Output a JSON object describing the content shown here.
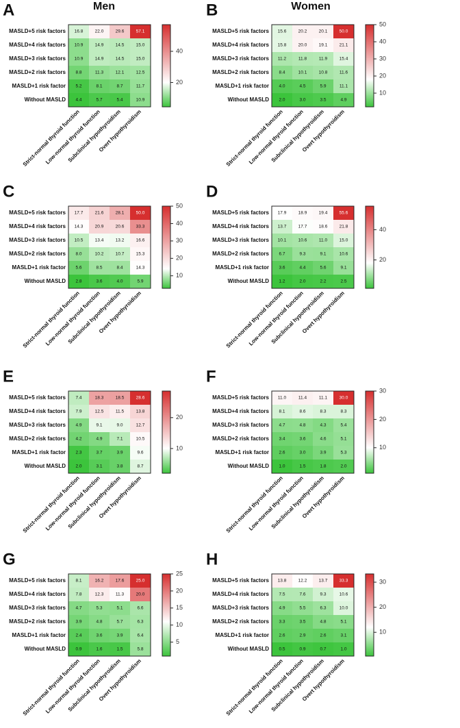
{
  "column_titles": [
    "Men",
    "Women"
  ],
  "chart_data": [
    {
      "type": "heatmap",
      "panel": "A",
      "rows": [
        "MASLD+5 risk factors",
        "MASLD+4 risk factors",
        "MASLD+3 risk factors",
        "MASLD+2 risk factors",
        "MASLD+1 risk factor",
        "Without MASLD"
      ],
      "columns": [
        "Strict-normal thyroid function",
        "Low-normal thyroid function",
        "Subclinical hypothyroidism",
        "Overt hypothyroidism"
      ],
      "values": [
        [
          16.8,
          22.0,
          29.6,
          57.1
        ],
        [
          10.9,
          14.9,
          14.5,
          15.0
        ],
        [
          10.9,
          14.9,
          14.5,
          15.0
        ],
        [
          8.8,
          11.3,
          12.1,
          12.5
        ],
        [
          5.2,
          8.1,
          8.7,
          11.7
        ],
        [
          4.4,
          5.7,
          5.4,
          10.9
        ]
      ],
      "value_labels": [
        [
          "16.8",
          "22.0",
          "29.6",
          "57.1"
        ],
        [
          "10.9",
          "14.9",
          "14.5",
          "15.0"
        ],
        [
          "10.9",
          "14.9",
          "14.5",
          "15.0"
        ],
        [
          "8.8",
          "11.3",
          "12.1",
          "12.5"
        ],
        [
          "5.2",
          "8.1",
          "8.7",
          "11.7"
        ],
        [
          "4.4",
          "5.7",
          "5.4",
          "10.9"
        ]
      ],
      "zlim": [
        4.4,
        57.1
      ],
      "zticks": [
        20,
        40
      ],
      "zcenter": 20,
      "colors": {
        "low": "#3cc43c",
        "mid": "#ffffff",
        "high": "#d62f2f"
      }
    },
    {
      "type": "heatmap",
      "panel": "B",
      "rows": [
        "MASLD+5 risk factors",
        "MASLD+4 risk factors",
        "MASLD+3 risk factors",
        "MASLD+2 risk factors",
        "MASLD+1 risk factor",
        "Without MASLD"
      ],
      "columns": [
        "Strict-normal thyroid function",
        "Low-normal thyroid function",
        "Subclinical hypothyroidism",
        "Overt hypothyroidism"
      ],
      "values": [
        [
          15.6,
          20.2,
          20.1,
          50.0
        ],
        [
          15.8,
          20.0,
          19.1,
          21.1
        ],
        [
          11.2,
          11.8,
          11.9,
          15.4
        ],
        [
          8.4,
          10.1,
          10.8,
          11.6
        ],
        [
          4.0,
          4.5,
          5.9,
          11.1
        ],
        [
          2.0,
          3.0,
          3.5,
          4.9
        ]
      ],
      "value_labels": [
        [
          "15.6",
          "20.2",
          "20.1",
          "50.0"
        ],
        [
          "15.8",
          "20.0",
          "19.1",
          "21.1"
        ],
        [
          "11.2",
          "11.8",
          "11.9",
          "15.4"
        ],
        [
          "8.4",
          "10.1",
          "10.8",
          "11.6"
        ],
        [
          "4.0",
          "4.5",
          "5.9",
          "11.1"
        ],
        [
          "2.0",
          "3.0",
          "3.5",
          "4.9"
        ]
      ],
      "zlim": [
        2.0,
        50.0
      ],
      "zticks": [
        10,
        20,
        30,
        40,
        50
      ],
      "zcenter": 18,
      "colors": {
        "low": "#3cc43c",
        "mid": "#ffffff",
        "high": "#d62f2f"
      }
    },
    {
      "type": "heatmap",
      "panel": "C",
      "rows": [
        "MASLD+5 risk factors",
        "MASLD+4 risk factors",
        "MASLD+3 risk factors",
        "MASLD+2 risk factors",
        "MASLD+1 risk factor",
        "Without MASLD"
      ],
      "columns": [
        "Strict-normal thyroid function",
        "Low-normal thyroid function",
        "Subclinical hypothyroidism",
        "Overt hypothyroidism"
      ],
      "values": [
        [
          17.7,
          21.6,
          28.1,
          50.0
        ],
        [
          14.3,
          20.9,
          20.6,
          33.3
        ],
        [
          10.5,
          13.4,
          13.2,
          16.6
        ],
        [
          8.0,
          10.2,
          10.7,
          15.3
        ],
        [
          5.6,
          8.5,
          8.4,
          14.3
        ],
        [
          2.8,
          3.6,
          4.0,
          5.9
        ]
      ],
      "value_labels": [
        [
          "17.7",
          "21.6",
          "28.1",
          "50.0"
        ],
        [
          "14.3",
          "20.9",
          "20.6",
          "33.3"
        ],
        [
          "10.5",
          "13.4",
          "13.2",
          "16.6"
        ],
        [
          "8.0",
          "10.2",
          "10.7",
          "15.3"
        ],
        [
          "5.6",
          "8.5",
          "8.4",
          "14.3"
        ],
        [
          "2.8",
          "3.6",
          "4.0",
          "5.9"
        ]
      ],
      "zlim": [
        2.8,
        50.0
      ],
      "zticks": [
        10,
        20,
        30,
        40,
        50
      ],
      "zcenter": 14,
      "colors": {
        "low": "#3cc43c",
        "mid": "#ffffff",
        "high": "#d62f2f"
      }
    },
    {
      "type": "heatmap",
      "panel": "D",
      "rows": [
        "MASLD+5 risk factors",
        "MASLD+4 risk factors",
        "MASLD+3 risk factors",
        "MASLD+2 risk factors",
        "MASLD+1 risk factor",
        "Without MASLD"
      ],
      "columns": [
        "Strict-normal thyroid function",
        "Low-normal thyroid function",
        "Subclinical hypothyroidism",
        "Overt hypothyroidism"
      ],
      "values": [
        [
          17.9,
          18.9,
          19.4,
          55.6
        ],
        [
          13.7,
          17.7,
          18.6,
          21.8
        ],
        [
          10.1,
          10.6,
          11.0,
          15.0
        ],
        [
          6.7,
          9.3,
          9.1,
          10.6
        ],
        [
          3.6,
          4.4,
          5.6,
          9.1
        ],
        [
          1.2,
          2.0,
          2.2,
          2.5
        ]
      ],
      "value_labels": [
        [
          "17.9",
          "18.9",
          "19.4",
          "55.6"
        ],
        [
          "13.7",
          "17.7",
          "18.6",
          "21.8"
        ],
        [
          "10.1",
          "10.6",
          "11.0",
          "15.0"
        ],
        [
          "6.7",
          "9.3",
          "9.1",
          "10.6"
        ],
        [
          "3.6",
          "4.4",
          "5.6",
          "9.1"
        ],
        [
          "1.2",
          "2.0",
          "2.2",
          "2.5"
        ]
      ],
      "zlim": [
        1.2,
        55.6
      ],
      "zticks": [
        20,
        40
      ],
      "zcenter": 18,
      "colors": {
        "low": "#3cc43c",
        "mid": "#ffffff",
        "high": "#d62f2f"
      }
    },
    {
      "type": "heatmap",
      "panel": "E",
      "rows": [
        "MASLD+5 risk factors",
        "MASLD+4 risk factors",
        "MASLD+3 risk factors",
        "MASLD+2 risk factors",
        "MASLD+1 risk factor",
        "Without MASLD"
      ],
      "columns": [
        "Strict-normal thyroid function",
        "Low-normal thyroid function",
        "Subclinical hypothyroidism",
        "Overt hypothyroidism"
      ],
      "values": [
        [
          7.4,
          18.3,
          18.5,
          28.6
        ],
        [
          7.9,
          12.5,
          11.5,
          13.8
        ],
        [
          4.9,
          9.1,
          9.0,
          12.7
        ],
        [
          4.2,
          4.9,
          7.1,
          10.5
        ],
        [
          2.3,
          3.7,
          3.9,
          9.6
        ],
        [
          2.0,
          3.1,
          3.8,
          8.7
        ]
      ],
      "value_labels": [
        [
          "7.4",
          "18.3",
          "18.5",
          "28.6"
        ],
        [
          "7.9",
          "12.5",
          "11.5",
          "13.8"
        ],
        [
          "4.9",
          "9.1",
          "9.0",
          "12.7"
        ],
        [
          "4.2",
          "4.9",
          "7.1",
          "10.5"
        ],
        [
          "2.3",
          "3.7",
          "3.9",
          "9.6"
        ],
        [
          "2.0",
          "3.1",
          "3.8",
          "8.7"
        ]
      ],
      "zlim": [
        2.0,
        28.6
      ],
      "zticks": [
        10,
        20
      ],
      "zcenter": 10,
      "colors": {
        "low": "#3cc43c",
        "mid": "#ffffff",
        "high": "#d62f2f"
      }
    },
    {
      "type": "heatmap",
      "panel": "F",
      "rows": [
        "MASLD+5 risk factors",
        "MASLD+4 risk factors",
        "MASLD+3 risk factors",
        "MASLD+2 risk factors",
        "MASLD+1 risk factor",
        "Without MASLD"
      ],
      "columns": [
        "Strict-normal thyroid function",
        "Low-normal thyroid function",
        "Subclinical hypothyroidism",
        "Overt hypothyroidism"
      ],
      "values": [
        [
          11.0,
          11.4,
          11.1,
          30.0
        ],
        [
          8.1,
          8.6,
          8.3,
          8.3
        ],
        [
          4.7,
          4.8,
          4.3,
          5.4
        ],
        [
          3.4,
          3.6,
          4.6,
          5.1
        ],
        [
          2.6,
          3.0,
          3.9,
          5.3
        ],
        [
          1.0,
          1.5,
          1.8,
          2.0
        ]
      ],
      "value_labels": [
        [
          "11.0",
          "11.4",
          "11.1",
          "30.0"
        ],
        [
          "8.1",
          "8.6",
          "8.3",
          "8.3"
        ],
        [
          "4.7",
          "4.8",
          "4.3",
          "5.4"
        ],
        [
          "3.4",
          "3.6",
          "4.6",
          "5.1"
        ],
        [
          "2.6",
          "3.0",
          "3.9",
          "5.3"
        ],
        [
          "1.0",
          "1.5",
          "1.8",
          "2.0"
        ]
      ],
      "zlim": [
        1.0,
        30.0
      ],
      "zticks": [
        10,
        20,
        30
      ],
      "zcenter": 10,
      "colors": {
        "low": "#3cc43c",
        "mid": "#ffffff",
        "high": "#d62f2f"
      }
    },
    {
      "type": "heatmap",
      "panel": "G",
      "rows": [
        "MASLD+5 risk factors",
        "MASLD+4 risk factors",
        "MASLD+3 risk factors",
        "MASLD+2 risk factors",
        "MASLD+1 risk factor",
        "Without MASLD"
      ],
      "columns": [
        "Strict-normal thyroid function",
        "Low-normal thyroid function",
        "Subclinical hypothyroidism",
        "Overt hypothyroidism"
      ],
      "values": [
        [
          8.1,
          16.2,
          17.6,
          25.0
        ],
        [
          7.8,
          12.3,
          11.3,
          20.0
        ],
        [
          4.7,
          5.3,
          5.1,
          6.6
        ],
        [
          3.9,
          4.8,
          5.7,
          6.3
        ],
        [
          2.4,
          3.6,
          3.9,
          6.4
        ],
        [
          0.9,
          1.6,
          1.5,
          5.8
        ]
      ],
      "value_labels": [
        [
          "8.1",
          "16.2",
          "17.6",
          "25.0"
        ],
        [
          "7.8",
          "12.3",
          "11.3",
          "20.0"
        ],
        [
          "4.7",
          "5.3",
          "5.1",
          "6.6"
        ],
        [
          "3.9",
          "4.8",
          "5.7",
          "6.3"
        ],
        [
          "2.4",
          "3.6",
          "3.9",
          "6.4"
        ],
        [
          "0.9",
          "1.6",
          "1.5",
          "5.8"
        ]
      ],
      "zlim": [
        0.9,
        25.0
      ],
      "zticks": [
        5,
        10,
        15,
        20,
        25
      ],
      "zcenter": 11,
      "colors": {
        "low": "#3cc43c",
        "mid": "#ffffff",
        "high": "#d62f2f"
      }
    },
    {
      "type": "heatmap",
      "panel": "H",
      "rows": [
        "MASLD+5 risk factors",
        "MASLD+4 risk factors",
        "MASLD+3 risk factors",
        "MASLD+2 risk factors",
        "MASLD+1 risk factor",
        "Without MASLD"
      ],
      "columns": [
        "Strict-normal thyroid function",
        "Low-normal thyroid function",
        "Subclinical hypothyroidism",
        "Overt hypothyroidism"
      ],
      "values": [
        [
          13.8,
          12.2,
          13.7,
          33.3
        ],
        [
          7.5,
          7.6,
          9.3,
          10.6
        ],
        [
          4.9,
          5.5,
          6.3,
          10.0
        ],
        [
          3.3,
          3.5,
          4.8,
          5.1
        ],
        [
          2.6,
          2.9,
          2.6,
          3.1
        ],
        [
          0.5,
          0.9,
          0.7,
          1.0
        ]
      ],
      "value_labels": [
        [
          "13.8",
          "12.2",
          "13.7",
          "33.3"
        ],
        [
          "7.5",
          "7.6",
          "9.3",
          "10.6"
        ],
        [
          "4.9",
          "5.5",
          "6.3",
          "10.0"
        ],
        [
          "3.3",
          "3.5",
          "4.8",
          "5.1"
        ],
        [
          "2.6",
          "2.9",
          "2.6",
          "3.1"
        ],
        [
          "0.5",
          "0.9",
          "0.7",
          "1.0"
        ]
      ],
      "zlim": [
        0.5,
        33.3
      ],
      "zticks": [
        10,
        20,
        30
      ],
      "zcenter": 12,
      "colors": {
        "low": "#3cc43c",
        "mid": "#ffffff",
        "high": "#d62f2f"
      }
    }
  ]
}
